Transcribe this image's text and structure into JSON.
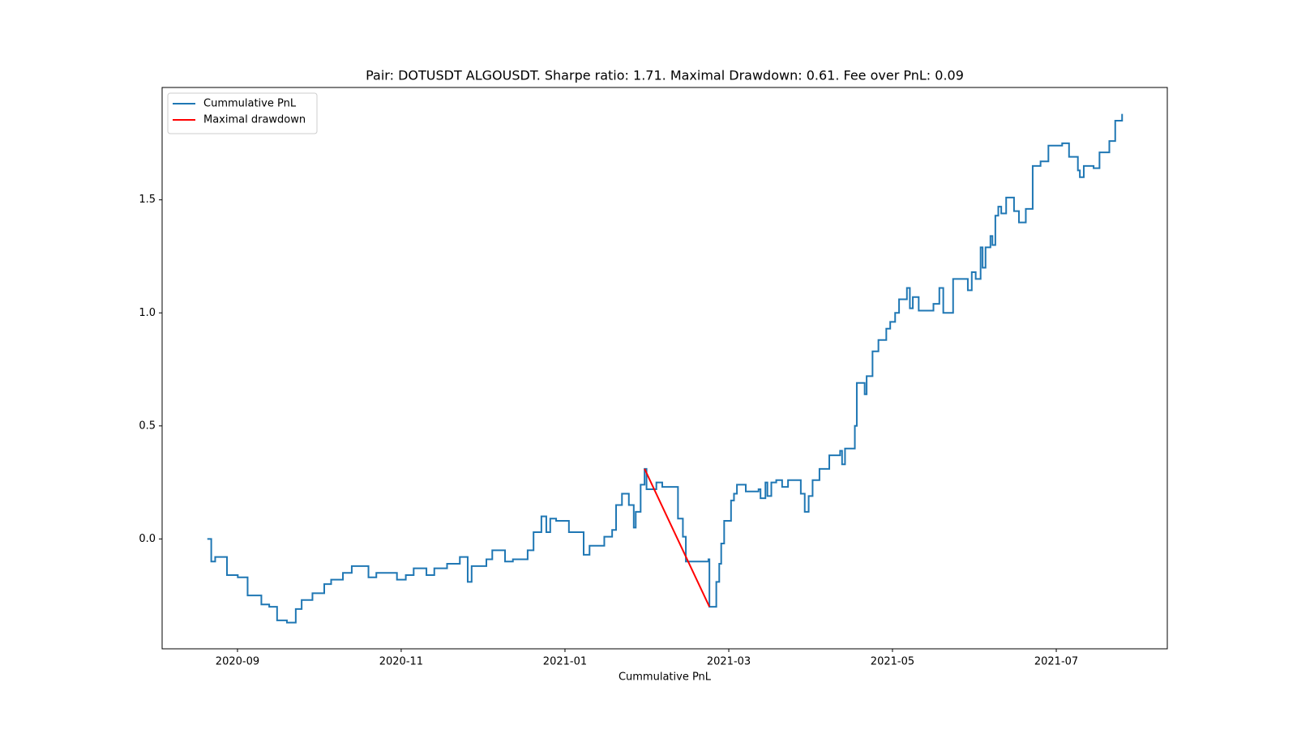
{
  "chart_data": {
    "type": "line",
    "drawstyle": "steps-post",
    "title": "Pair: DOTUSDT ALGOUSDT. Sharpe ratio: 1.71. Maximal Drawdown: 0.61. Fee over PnL: 0.09",
    "xlabel": "Cummulative PnL",
    "xlim": [
      2020.59,
      2021.613
    ],
    "ylim": [
      -0.486,
      1.997
    ],
    "xticks": [
      {
        "value": 2020.6667,
        "label": "2020-09"
      },
      {
        "value": 2020.8333,
        "label": "2020-11"
      },
      {
        "value": 2021.0,
        "label": "2021-01"
      },
      {
        "value": 2021.1667,
        "label": "2021-03"
      },
      {
        "value": 2021.3333,
        "label": "2021-05"
      },
      {
        "value": 2021.5,
        "label": "2021-07"
      }
    ],
    "yticks": [
      {
        "value": 0,
        "label": "0.0"
      },
      0.5,
      {
        "value": 1,
        "label": "1.0"
      },
      1.5
    ],
    "legend": "upper left",
    "series": [
      {
        "name": "Cummulative PnL",
        "color": "#1f77b4",
        "step": true,
        "x": [
          2020.636,
          2020.64,
          2020.644,
          2020.656,
          2020.667,
          2020.677,
          2020.691,
          2020.699,
          2020.707,
          2020.717,
          2020.726,
          2020.732,
          2020.743,
          2020.755,
          2020.762,
          2020.774,
          2020.783,
          2020.8,
          2020.808,
          2020.829,
          2020.838,
          2020.846,
          2020.859,
          2020.867,
          2020.88,
          2020.893,
          2020.901,
          2020.905,
          2020.92,
          2020.926,
          2020.939,
          2020.947,
          2020.962,
          2020.968,
          2020.976,
          2020.981,
          2020.985,
          2020.991,
          2021.004,
          2021.019,
          2021.025,
          2021.04,
          2021.048,
          2021.052,
          2021.058,
          2021.065,
          2021.07,
          2021.072,
          2021.077,
          2021.081,
          2021.083,
          2021.093,
          2021.099,
          2021.115,
          2021.12,
          2021.123,
          2021.146,
          2021.147,
          2021.154,
          2021.157,
          2021.159,
          2021.162,
          2021.169,
          2021.172,
          2021.175,
          2021.184,
          2021.197,
          2021.199,
          2021.204,
          2021.206,
          2021.21,
          2021.215,
          2021.221,
          2021.227,
          2021.24,
          2021.244,
          2021.248,
          2021.252,
          2021.259,
          2021.269,
          2021.28,
          2021.282,
          2021.285,
          2021.295,
          2021.297,
          2021.305,
          2021.307,
          2021.313,
          2021.319,
          2021.327,
          2021.331,
          2021.336,
          2021.34,
          2021.348,
          2021.351,
          2021.354,
          2021.36,
          2021.375,
          2021.381,
          2021.385,
          2021.395,
          2021.41,
          2021.414,
          2021.418,
          2021.423,
          2021.425,
          2021.428,
          2021.433,
          2021.435,
          2021.438,
          2021.441,
          2021.444,
          2021.449,
          2021.457,
          2021.462,
          2021.469,
          2021.476,
          2021.484,
          2021.492,
          2021.506,
          2021.513,
          2021.522,
          2021.524,
          2021.528,
          2021.538,
          2021.544,
          2021.554,
          2021.56,
          2021.567
        ],
        "values": [
          0,
          -0.1,
          -0.08,
          -0.16,
          -0.17,
          -0.25,
          -0.29,
          -0.3,
          -0.36,
          -0.37,
          -0.31,
          -0.27,
          -0.24,
          -0.2,
          -0.18,
          -0.15,
          -0.12,
          -0.17,
          -0.15,
          -0.18,
          -0.16,
          -0.13,
          -0.16,
          -0.13,
          -0.11,
          -0.08,
          -0.19,
          -0.12,
          -0.09,
          -0.05,
          -0.1,
          -0.09,
          -0.05,
          0.03,
          0.1,
          0.03,
          0.09,
          0.08,
          0.03,
          -0.07,
          -0.03,
          0.01,
          0.04,
          0.15,
          0.2,
          0.15,
          0.05,
          0.12,
          0.24,
          0.31,
          0.22,
          0.25,
          0.23,
          0.09,
          0.01,
          -0.1,
          -0.09,
          -0.3,
          -0.19,
          -0.11,
          -0.02,
          0.08,
          0.17,
          0.2,
          0.24,
          0.21,
          0.22,
          0.18,
          0.25,
          0.19,
          0.25,
          0.26,
          0.23,
          0.26,
          0.2,
          0.12,
          0.19,
          0.26,
          0.31,
          0.37,
          0.39,
          0.33,
          0.4,
          0.5,
          0.69,
          0.64,
          0.72,
          0.83,
          0.88,
          0.93,
          0.96,
          1.0,
          1.06,
          1.11,
          1.02,
          1.07,
          1.01,
          1.04,
          1.11,
          1.0,
          1.15,
          1.1,
          1.18,
          1.15,
          1.29,
          1.2,
          1.29,
          1.34,
          1.3,
          1.43,
          1.47,
          1.44,
          1.51,
          1.45,
          1.4,
          1.46,
          1.65,
          1.67,
          1.74,
          1.75,
          1.69,
          1.63,
          1.6,
          1.65,
          1.64,
          1.71,
          1.76,
          1.85,
          1.88
        ]
      },
      {
        "name": "Maximal drawdown",
        "color": "#ff0000",
        "step": false,
        "x": [
          2021.081,
          2021.147
        ],
        "values": [
          0.31,
          -0.3
        ]
      }
    ]
  }
}
